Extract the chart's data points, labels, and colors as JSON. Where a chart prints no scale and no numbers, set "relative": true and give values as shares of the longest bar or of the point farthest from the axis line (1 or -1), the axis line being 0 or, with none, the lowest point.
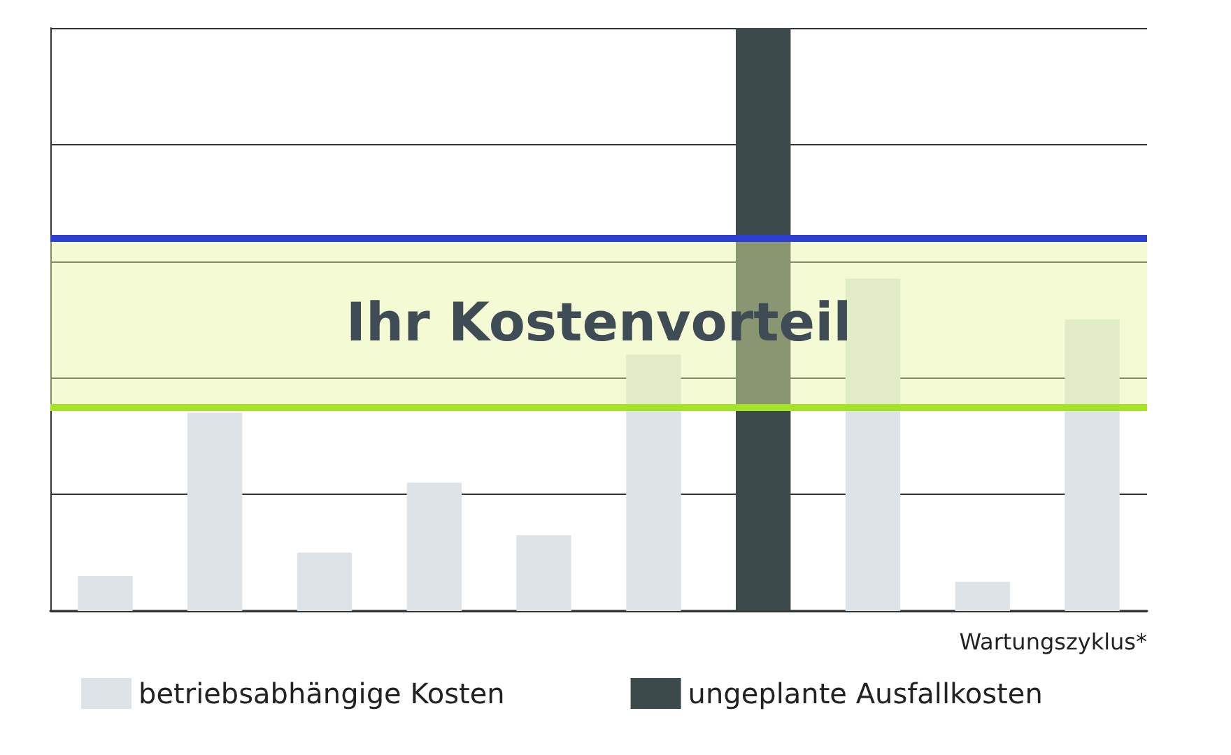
{
  "chart_data": {
    "type": "bar",
    "relative": true,
    "stacked": true,
    "xlabel": "Wartungszyklus*",
    "categories": [
      null,
      null,
      null,
      null,
      null,
      null,
      null,
      null,
      null,
      null
    ],
    "series": [
      {
        "name": "betriebsabhängige Kosten",
        "color": "#dde3e6",
        "values": [
          0.06,
          0.34,
          0.1,
          0.22,
          0.13,
          0.44,
          null,
          0.57,
          0.05,
          0.5
        ]
      },
      {
        "name": "ungeplante Ausfallkosten",
        "color": "#3d4a4c",
        "values": [
          null,
          null,
          null,
          null,
          null,
          null,
          1,
          null,
          null,
          null
        ]
      }
    ],
    "bands": [
      {
        "axis": "y",
        "from": 0.35,
        "to": 0.64,
        "label": "Ihr Kostenvorteil",
        "color": "#e6f5a0"
      }
    ],
    "ref_lines": [
      {
        "axis": "y",
        "value": 0.64,
        "color": "#2d3fd0"
      },
      {
        "axis": "y",
        "value": 0.35,
        "color": "#a6e22a"
      }
    ],
    "grid": "y",
    "legend": "bottom"
  }
}
